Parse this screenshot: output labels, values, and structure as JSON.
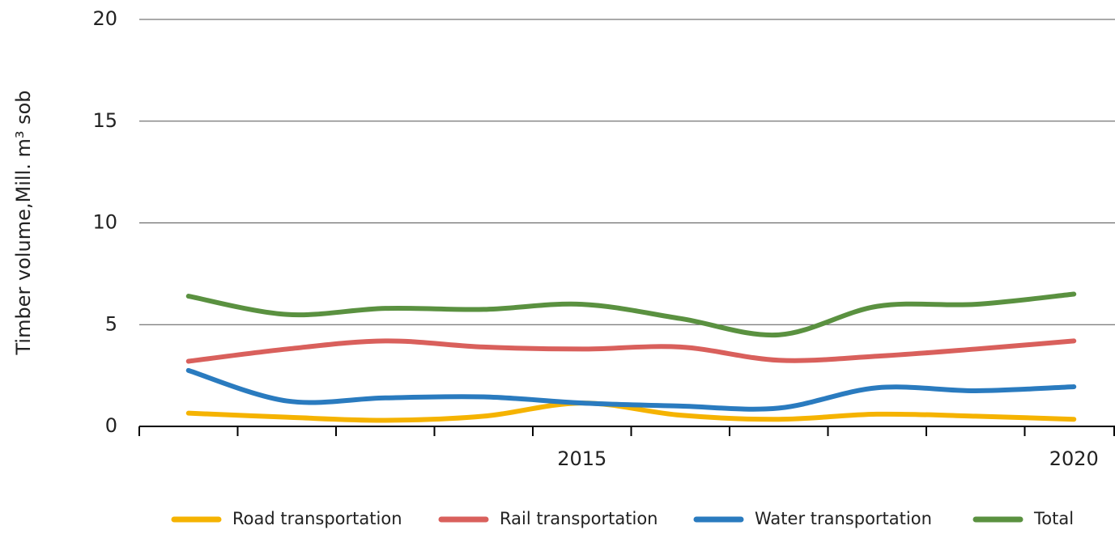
{
  "chart_data": {
    "type": "line",
    "y_label": "Timber volume,Mill.  m³ sob",
    "categories": [
      null,
      null,
      null,
      null,
      "2015",
      null,
      null,
      null,
      null,
      "2020"
    ],
    "series": [
      {
        "name": "Road transportation",
        "color": "#f5b301",
        "values": [
          0.65,
          0.45,
          0.3,
          0.5,
          1.15,
          0.55,
          0.35,
          0.6,
          0.5,
          0.35
        ]
      },
      {
        "name": "Rail transportation",
        "color": "#d9605c",
        "values": [
          3.2,
          3.8,
          4.2,
          3.9,
          3.8,
          3.9,
          3.25,
          3.45,
          3.8,
          4.2
        ]
      },
      {
        "name": "Water transportation",
        "color": "#2a7bbf",
        "values": [
          2.75,
          1.25,
          1.4,
          1.45,
          1.15,
          1.0,
          0.9,
          1.9,
          1.75,
          1.95
        ]
      },
      {
        "name": "Total",
        "color": "#5a9140",
        "values": [
          6.4,
          5.5,
          5.8,
          5.75,
          6.0,
          5.3,
          4.5,
          5.9,
          6.0,
          6.5
        ]
      }
    ],
    "ylim": [
      0,
      20
    ],
    "yticks": [
      0,
      5,
      10,
      15,
      20
    ],
    "grid": true,
    "legend": "bottom"
  }
}
